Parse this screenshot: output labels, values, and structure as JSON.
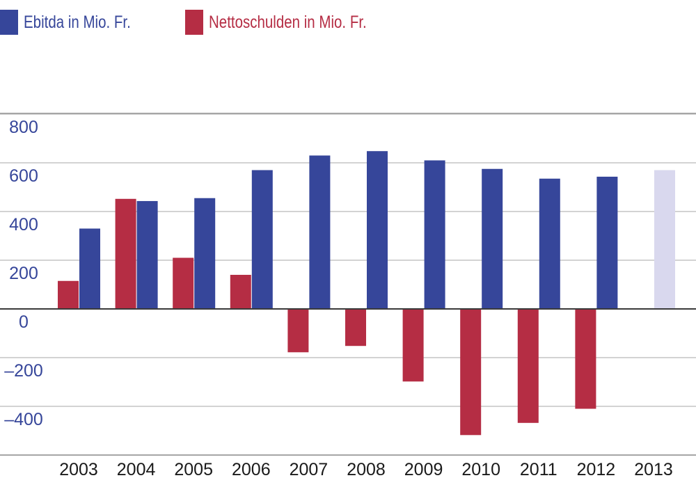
{
  "chart_data": {
    "type": "bar",
    "categories": [
      "2003",
      "2004",
      "2005",
      "2006",
      "2007",
      "2008",
      "2009",
      "2010",
      "2011",
      "2012",
      "2013"
    ],
    "series": [
      {
        "name": "Nettoschulden in Mio. Fr.",
        "color": "#b52d44",
        "values": [
          115,
          452,
          210,
          140,
          -178,
          -152,
          -298,
          -518,
          -468,
          -410,
          null
        ]
      },
      {
        "name": "Ebitda in Mio. Fr.",
        "color": "#36469a",
        "values": [
          330,
          443,
          455,
          570,
          630,
          648,
          610,
          575,
          535,
          543,
          570
        ],
        "highlight_color": "#d9d8ee",
        "highlight_index": 10
      }
    ],
    "yticks": [
      "800",
      "600",
      "400",
      "200",
      "0",
      "–200",
      "–400"
    ],
    "ytick_values": [
      800,
      600,
      400,
      200,
      0,
      -200,
      -400
    ],
    "ylim": [
      -600,
      800
    ],
    "grid": true,
    "tick_color": "#36469a",
    "legend_position": "top-left",
    "xlabel": "",
    "ylabel": ""
  }
}
